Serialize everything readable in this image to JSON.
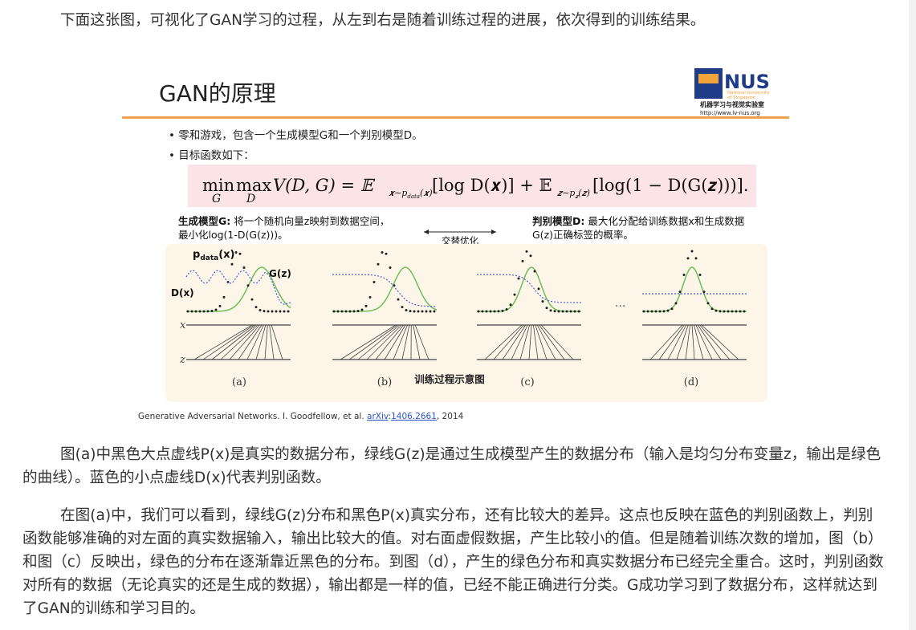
{
  "intro": "下面这张图，可视化了GAN学习的过程，从左到右是随着训练过程的进展，依次得到的训练结果。",
  "slide": {
    "title": "GAN的原理",
    "logo": {
      "name": "NUS",
      "university": [
        "National University",
        "of Singapore"
      ],
      "lab": "机器学习与视觉实验室",
      "url": "http://www.lv-nus.org"
    },
    "bullets": [
      "• 零和游戏，包含一个生成模型G和一个判别模型D。",
      "• 目标函数如下："
    ],
    "formula": {
      "min": "min",
      "min_sub": "G",
      "max": "max",
      "max_sub": "D",
      "lhs": "V(D, G) = 𝔼",
      "e1_sub": "𝒙∼p",
      "e1_subsub": "data",
      "e1_sub_rest": "(𝒙)",
      "t1": "[log D(𝒙)] + 𝔼",
      "e2_sub": "𝒛∼p",
      "e2_subsub": "𝒛",
      "e2_sub_rest": "(𝒛)",
      "t2": "[log(1 − D(G(𝒛)))]."
    },
    "generator": {
      "head": "生成模型G:",
      "text": [
        "将一个随机向量z映射到数据空间，",
        "最小化log(1-D(G(z)))。"
      ]
    },
    "alternate": "交替优化",
    "discriminator": {
      "head": "判别模型D:",
      "text": [
        "最大化分配给训练数据x和生成数据",
        "G(z)正确标签的概率。"
      ]
    },
    "diagram": {
      "pdata": {
        "base": "p",
        "sub": "data",
        "rest": "(x)"
      },
      "gz": "G(z)",
      "dx": "D(x)",
      "x_axis": "x",
      "z_axis": "z",
      "ellipsis": "···",
      "panels": [
        "(a)",
        "(b)",
        "(c)",
        "(d)"
      ],
      "caption": "训练过程示意图"
    },
    "citation": {
      "text": "Generative Adversarial Networks. I. Goodfellow, et al. ",
      "link1": "arXiv",
      "sep": ":",
      "link2": "1406.2661",
      "tail": ", 2014"
    }
  },
  "paragraphs": [
    "图(a)中黑色大点虚线P(x)是真实的数据分布，绿线G(z)是通过生成模型产生的数据分布（输入是均匀分布变量z，输出是绿色的曲线）。蓝色的小点虚线D(x)代表判别函数。",
    "在图(a)中，我们可以看到，绿线G(z)分布和黑色P(x)真实分布，还有比较大的差异。这点也反映在蓝色的判别函数上，判别函数能够准确的对左面的真实数据输入，输出比较大的值。对右面虚假数据，产生比较小的值。但是随着训练次数的增加，图（b）和图（c）反映出，绿色的分布在逐渐靠近黑色的分布。到图（d），产生的绿色分布和真实数据分布已经完全重合。这时，判别函数对所有的数据（无论真实的还是生成的数据），输出都是一样的值，已经不能正确进行分类。G成功学习到了数据分布，这样就达到了GAN的训练和学习目的。"
  ]
}
